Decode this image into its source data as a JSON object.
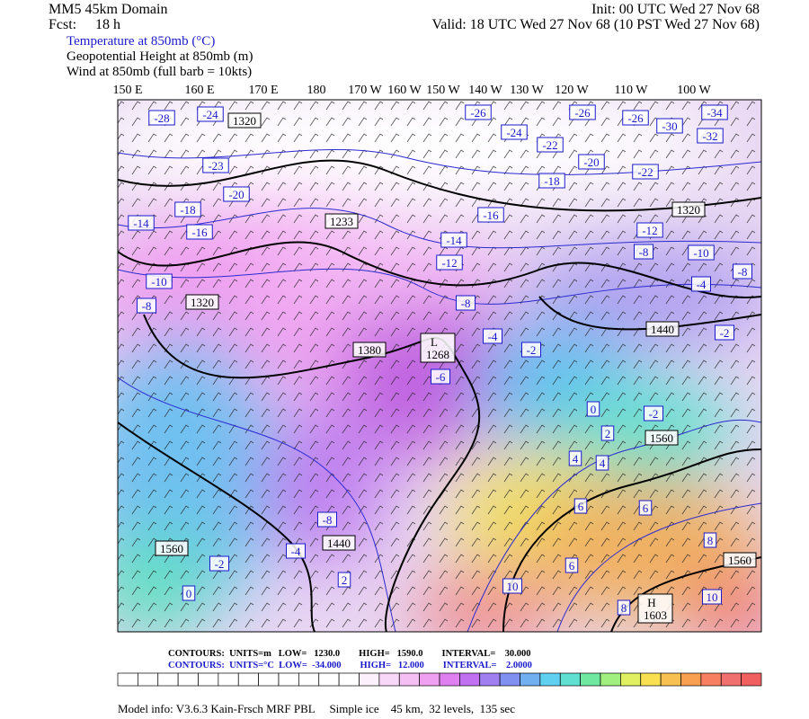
{
  "header": {
    "domain": "MM5 45km Domain",
    "init": "Init: 00 UTC Wed 27 Nov 68",
    "fcst_label": "Fcst:",
    "fcst_value": "18 h",
    "valid": "Valid: 18 UTC Wed 27 Nov 68 (10 PST Wed 27 Nov 68)",
    "fields": [
      "Temperature at 850mb (°C)",
      "Geopotential Height at 850mb (m)",
      "Wind at 850mb (full barb = 10kts)"
    ]
  },
  "map": {
    "longitude_labels": [
      "150 E",
      "160 E",
      "170 E",
      "180",
      "170 W",
      "160 W",
      "150 W",
      "140 W",
      "130 W",
      "120 W",
      "110 W",
      "100 W"
    ],
    "temperature_labels": [
      "-28",
      "-24",
      "-26",
      "-26",
      "-26",
      "-34",
      "-30",
      "-32",
      "-24",
      "-22",
      "-23",
      "-20",
      "-22",
      "-20",
      "-18",
      "-18",
      "-16",
      "-14",
      "-16",
      "-14",
      "-12",
      "-12",
      "-8",
      "-10",
      "-8",
      "-10",
      "-8",
      "-4",
      "-8",
      "-2",
      "-4",
      "-2",
      "-6",
      "0",
      "-2",
      "2",
      "4",
      "4",
      "6",
      "6",
      "-8",
      "8",
      "-4",
      "-2",
      "6",
      "2",
      "10",
      "0",
      "10",
      "8"
    ],
    "height_labels": [
      "1320",
      "1320",
      "1233",
      "1320",
      "1380",
      "1440",
      "1560",
      "1560",
      "1440",
      "1560"
    ],
    "extrema": [
      {
        "letter": "L",
        "value": "1268"
      },
      {
        "letter": "H",
        "value": "1603"
      }
    ]
  },
  "footer": {
    "height_contours": "CONTOURS:  UNITS=m   LOW=   1230.0        HIGH=   1590.0        INTERVAL=    30.000",
    "temperature_contours": "CONTOURS:  UNITS=°C  LOW=  -34.000        HIGH=   12.000        INTERVAL=    2.0000",
    "model_info": "Model info: V3.6.3 Kain-Frsch MRF PBL     Simple ice    45 km,  32 levels,  135 sec"
  }
}
